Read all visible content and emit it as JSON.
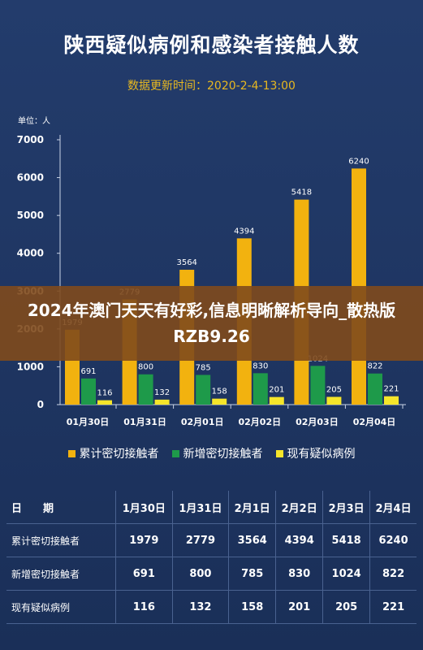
{
  "chart_data": {
    "type": "bar",
    "title": "陕西疑似病例和感染者接触人数",
    "subtitle": "数据更新时间：2020-2-4-13:00",
    "unit_label": "单位：人",
    "categories": [
      "01月30日",
      "01月31日",
      "02月01日",
      "02月02日",
      "02月03日",
      "02月04日"
    ],
    "series": [
      {
        "name": "累计密切接触者",
        "color": "#f2b20f",
        "values": [
          1979,
          2779,
          3564,
          4394,
          5418,
          6240
        ]
      },
      {
        "name": "新增密切接触者",
        "color": "#1e9a4a",
        "values": [
          691,
          800,
          785,
          830,
          1024,
          822
        ]
      },
      {
        "name": "现有疑似病例",
        "color": "#f5e52a",
        "values": [
          116,
          132,
          158,
          201,
          205,
          221
        ]
      }
    ],
    "yticks": [
      0,
      1000,
      2000,
      3000,
      4000,
      5000,
      6000,
      7000
    ],
    "ylim": [
      0,
      7000
    ],
    "xlabel": "",
    "ylabel": "",
    "grid": false,
    "legend": "bottom"
  },
  "overlay": {
    "text": "2024年澳门天天有好彩,信息明晰解析导向_散热版RZB9.26"
  },
  "table": {
    "header": [
      "日　　期",
      "1月30日",
      "1月31日",
      "2月1日",
      "2月2日",
      "2月3日",
      "2月4日"
    ],
    "rows": [
      {
        "label": "累计密切接触者",
        "cells": [
          "1979",
          "2779",
          "3564",
          "4394",
          "5418",
          "6240"
        ]
      },
      {
        "label": "新增密切接触者",
        "cells": [
          "691",
          "800",
          "785",
          "830",
          "1024",
          "822"
        ]
      },
      {
        "label": "现有疑似病例",
        "cells": [
          "116",
          "132",
          "158",
          "201",
          "205",
          "221"
        ]
      }
    ]
  }
}
